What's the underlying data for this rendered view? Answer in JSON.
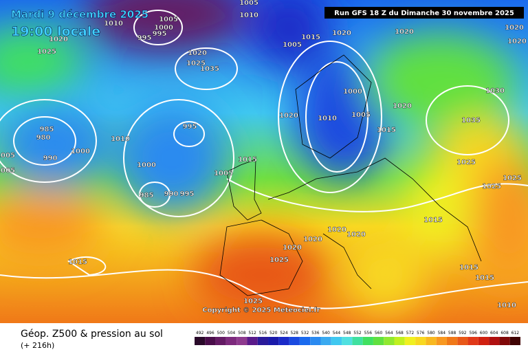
{
  "header": {
    "date": "Mardi 9 décembre 2025",
    "time": "19:00 locale",
    "run": "Run GFS 18 Z du Dimanche 30 novembre 2025",
    "copyright": "Copyright © 2025 Meteociel.fr"
  },
  "footer": {
    "title": "Géop. Z500 & pression au sol",
    "subtitle": "(+ 216h)"
  },
  "scale": {
    "values": [
      492,
      496,
      500,
      504,
      508,
      512,
      516,
      520,
      524,
      528,
      532,
      536,
      540,
      544,
      548,
      552,
      556,
      560,
      564,
      568,
      572,
      576,
      580,
      584,
      588,
      592,
      596,
      600,
      604,
      608,
      612
    ],
    "colors": [
      "#2a0a2a",
      "#4a0d4a",
      "#641a64",
      "#7d2a7d",
      "#8e3a8e",
      "#5a1a8a",
      "#2a1a9a",
      "#1a1aaa",
      "#1a2ac8",
      "#1a4ae0",
      "#1a6aee",
      "#2a8af0",
      "#3aaaf0",
      "#40c8f0",
      "#50e0e0",
      "#40e0a0",
      "#40e060",
      "#60e040",
      "#90e830",
      "#c0f020",
      "#f0f020",
      "#f8d820",
      "#f8b820",
      "#f89820",
      "#f07818",
      "#e85818",
      "#e03818",
      "#d02010",
      "#b01010",
      "#800808",
      "#400404"
    ]
  },
  "isobars": [
    "1005",
    "1010",
    "1005",
    "1000",
    "995",
    "995",
    "1010",
    "1020",
    "1025",
    "1020",
    "1025",
    "1035",
    "1015",
    "1005",
    "1020",
    "1020",
    "1020",
    "1020",
    "1030",
    "1000",
    "1020",
    "1010",
    "1005",
    "1020",
    "1015",
    "1035",
    "1025",
    "1025",
    "1025",
    "995",
    "985",
    "980",
    "990",
    "1000",
    "1010",
    "1000",
    "1015",
    "1005",
    "985",
    "990",
    "995",
    "1015",
    "1020",
    "1020",
    "1020",
    "1020",
    "1025",
    "1015",
    "1015",
    "1015",
    "1025",
    "1010",
    "1005",
    "1005"
  ]
}
